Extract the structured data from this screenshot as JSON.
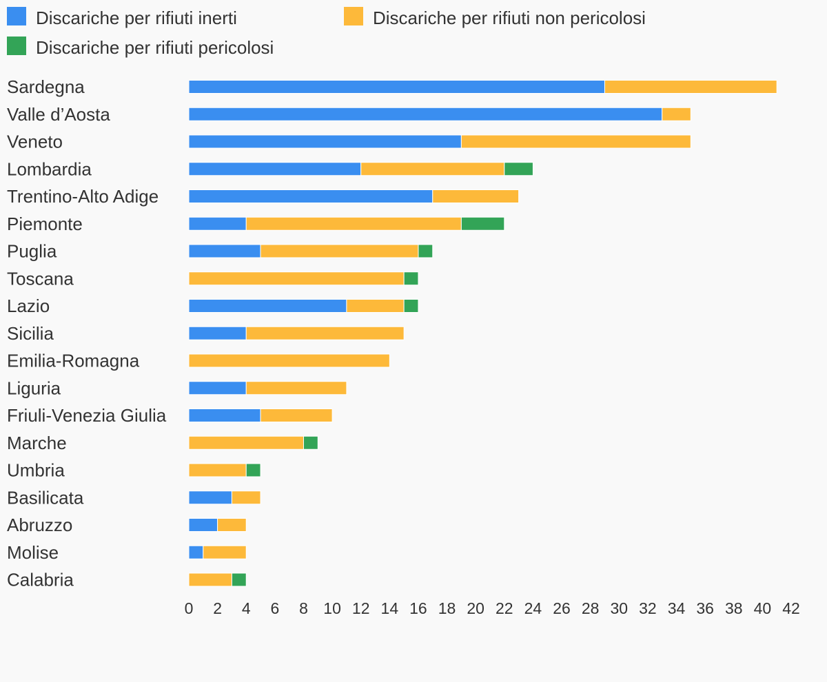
{
  "chart_data": {
    "type": "bar",
    "orientation": "horizontal",
    "stacked": true,
    "title": "",
    "xlabel": "",
    "ylabel": "",
    "xlim": [
      0,
      42
    ],
    "x_ticks": [
      0,
      2,
      4,
      6,
      8,
      10,
      12,
      14,
      16,
      18,
      20,
      22,
      24,
      26,
      28,
      30,
      32,
      34,
      36,
      38,
      40,
      42
    ],
    "grid": false,
    "legend_position": "top-left",
    "categories": [
      "Sardegna",
      "Valle d’Aosta",
      "Veneto",
      "Lombardia",
      "Trentino-Alto Adige",
      "Piemonte",
      "Puglia",
      "Toscana",
      "Lazio",
      "Sicilia",
      "Emilia-Romagna",
      "Liguria",
      "Friuli-Venezia Giulia",
      "Marche",
      "Umbria",
      "Basilicata",
      "Abruzzo",
      "Molise",
      "Calabria"
    ],
    "series": [
      {
        "name": "Discariche per rifiuti inerti",
        "color": "#3a8ef0",
        "values": [
          29,
          33,
          19,
          12,
          17,
          4,
          5,
          0,
          11,
          4,
          0,
          4,
          5,
          0,
          0,
          3,
          2,
          1,
          0
        ]
      },
      {
        "name": "Discariche per rifiuti non pericolosi",
        "color": "#fdb93a",
        "values": [
          12,
          2,
          16,
          10,
          6,
          15,
          11,
          15,
          4,
          11,
          14,
          7,
          5,
          8,
          4,
          2,
          2,
          3,
          3
        ]
      },
      {
        "name": "Discariche per rifiuti pericolosi",
        "color": "#33a457",
        "values": [
          0,
          0,
          0,
          2,
          0,
          3,
          1,
          1,
          1,
          0,
          0,
          0,
          0,
          1,
          1,
          0,
          0,
          0,
          1
        ]
      }
    ]
  }
}
